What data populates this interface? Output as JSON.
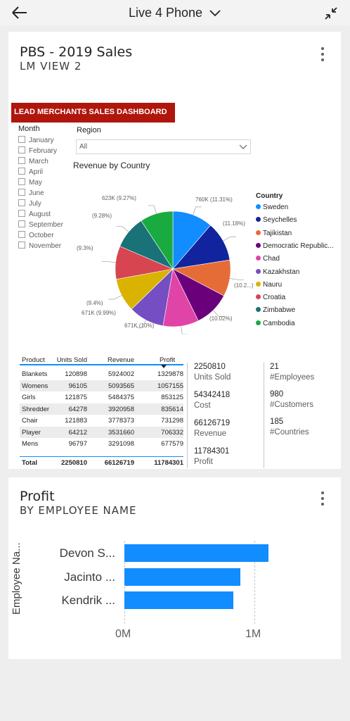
{
  "topbar": {
    "title": "Live 4 Phone"
  },
  "tile1": {
    "title": "PBS - 2019 Sales",
    "subtitle": "LM VIEW 2",
    "banner": "LEAD MERCHANTS SALES DASHBOARD",
    "month_label": "Month",
    "months": [
      "January",
      "February",
      "March",
      "April",
      "May",
      "June",
      "July",
      "August",
      "September",
      "October",
      "November"
    ],
    "region_label": "Region",
    "region_value": "All",
    "pie_title": "Revenue by Country",
    "legend_title": "Country",
    "pie_labels": [
      "760K (11.31%)",
      "(11.18%)",
      "(10.2...)",
      "(10.02%)",
      "671K (10%)",
      "671K (9.99%)",
      "(9.4%)",
      "(9.3%)",
      "(9.28%)",
      "623K (9.27%)"
    ],
    "table": {
      "headers": [
        "Product",
        "Units Sold",
        "Revenue",
        "Profit"
      ],
      "rows": [
        [
          "Blankets",
          "120898",
          "5924002",
          "1329878"
        ],
        [
          "Womens",
          "96105",
          "5093565",
          "1057155"
        ],
        [
          "Girls",
          "121875",
          "5484375",
          "853125"
        ],
        [
          "Shredder",
          "64278",
          "3920958",
          "835614"
        ],
        [
          "Chair",
          "121883",
          "3778373",
          "731298"
        ],
        [
          "Player",
          "64212",
          "3531660",
          "706332"
        ],
        [
          "Mens",
          "96797",
          "3291098",
          "677579"
        ]
      ],
      "total": [
        "Total",
        "2250810",
        "66126719",
        "11784301"
      ]
    },
    "kpis_left": [
      {
        "value": "2250810",
        "label": "Units Sold"
      },
      {
        "value": "54342418",
        "label": "Cost"
      },
      {
        "value": "66126719",
        "label": "Revenue"
      },
      {
        "value": "11784301",
        "label": "Profit"
      }
    ],
    "kpis_right": [
      {
        "value": "21",
        "label": "#Employees"
      },
      {
        "value": "980",
        "label": "#Customers"
      },
      {
        "value": "185",
        "label": "#Countries"
      }
    ]
  },
  "tile2": {
    "title": "Profit",
    "subtitle": "BY EMPLOYEE NAME",
    "y_axis_title": "Employee Na...",
    "x_ticks": [
      "0M",
      "1M"
    ]
  },
  "chart_data": [
    {
      "type": "pie",
      "title": "Revenue by Country",
      "legend_title": "Country",
      "categories": [
        "Sweden",
        "Seychelles",
        "Tajikistan",
        "Democratic Republic...",
        "Chad",
        "Kazakhstan",
        "Nauru",
        "Croatia",
        "Zimbabwe",
        "Cambodia"
      ],
      "values": [
        11.31,
        11.18,
        10.2,
        10.02,
        10.0,
        9.99,
        9.4,
        9.3,
        9.28,
        9.27
      ],
      "value_unit": "% of revenue",
      "colors": [
        "#118dff",
        "#12239e",
        "#e66c37",
        "#6b007b",
        "#e044a7",
        "#744ec2",
        "#d9b300",
        "#d64550",
        "#197278",
        "#1aab40"
      ],
      "legend_position": "right"
    },
    {
      "type": "bar",
      "orientation": "horizontal",
      "title": "Profit",
      "subtitle": "BY EMPLOYEE NAME",
      "categories": [
        "Devon S...",
        "Jacinto ...",
        "Kendrik ..."
      ],
      "values": [
        1.11,
        0.89,
        0.84
      ],
      "value_unit": "M",
      "ylabel": "Employee Na...",
      "xlim": [
        0,
        1.2
      ],
      "x_ticks": [
        "0M",
        "1M"
      ],
      "grid": true,
      "color": "#118dff"
    }
  ]
}
